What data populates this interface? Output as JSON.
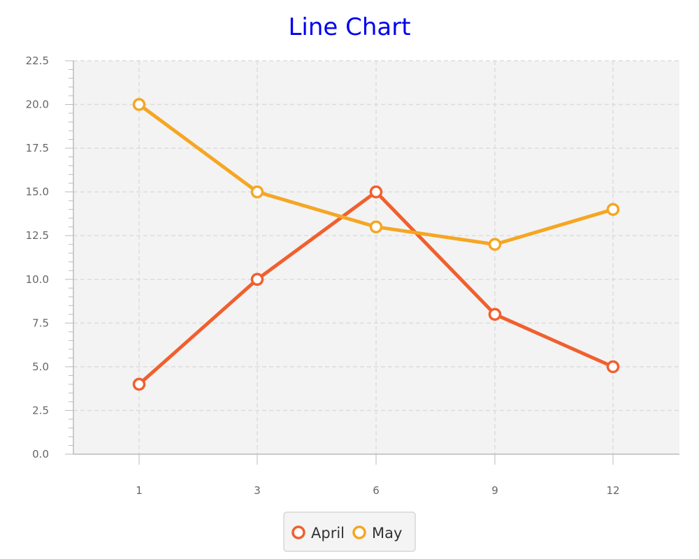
{
  "chart_data": {
    "type": "line",
    "title": "Line Chart",
    "xlabel": "",
    "ylabel": "",
    "categories": [
      "1",
      "3",
      "6",
      "9",
      "12"
    ],
    "ylim": [
      0,
      22.5
    ],
    "y_ticks": [
      "0.0",
      "2.5",
      "5.0",
      "7.5",
      "10.0",
      "12.5",
      "15.0",
      "17.5",
      "20.0",
      "22.5"
    ],
    "grid": true,
    "legend_position": "bottom",
    "series": [
      {
        "name": "April",
        "color": "#f0602e",
        "values": [
          4,
          10,
          15,
          8,
          5
        ]
      },
      {
        "name": "May",
        "color": "#f5a623",
        "values": [
          20,
          15,
          13,
          12,
          14
        ]
      }
    ]
  }
}
